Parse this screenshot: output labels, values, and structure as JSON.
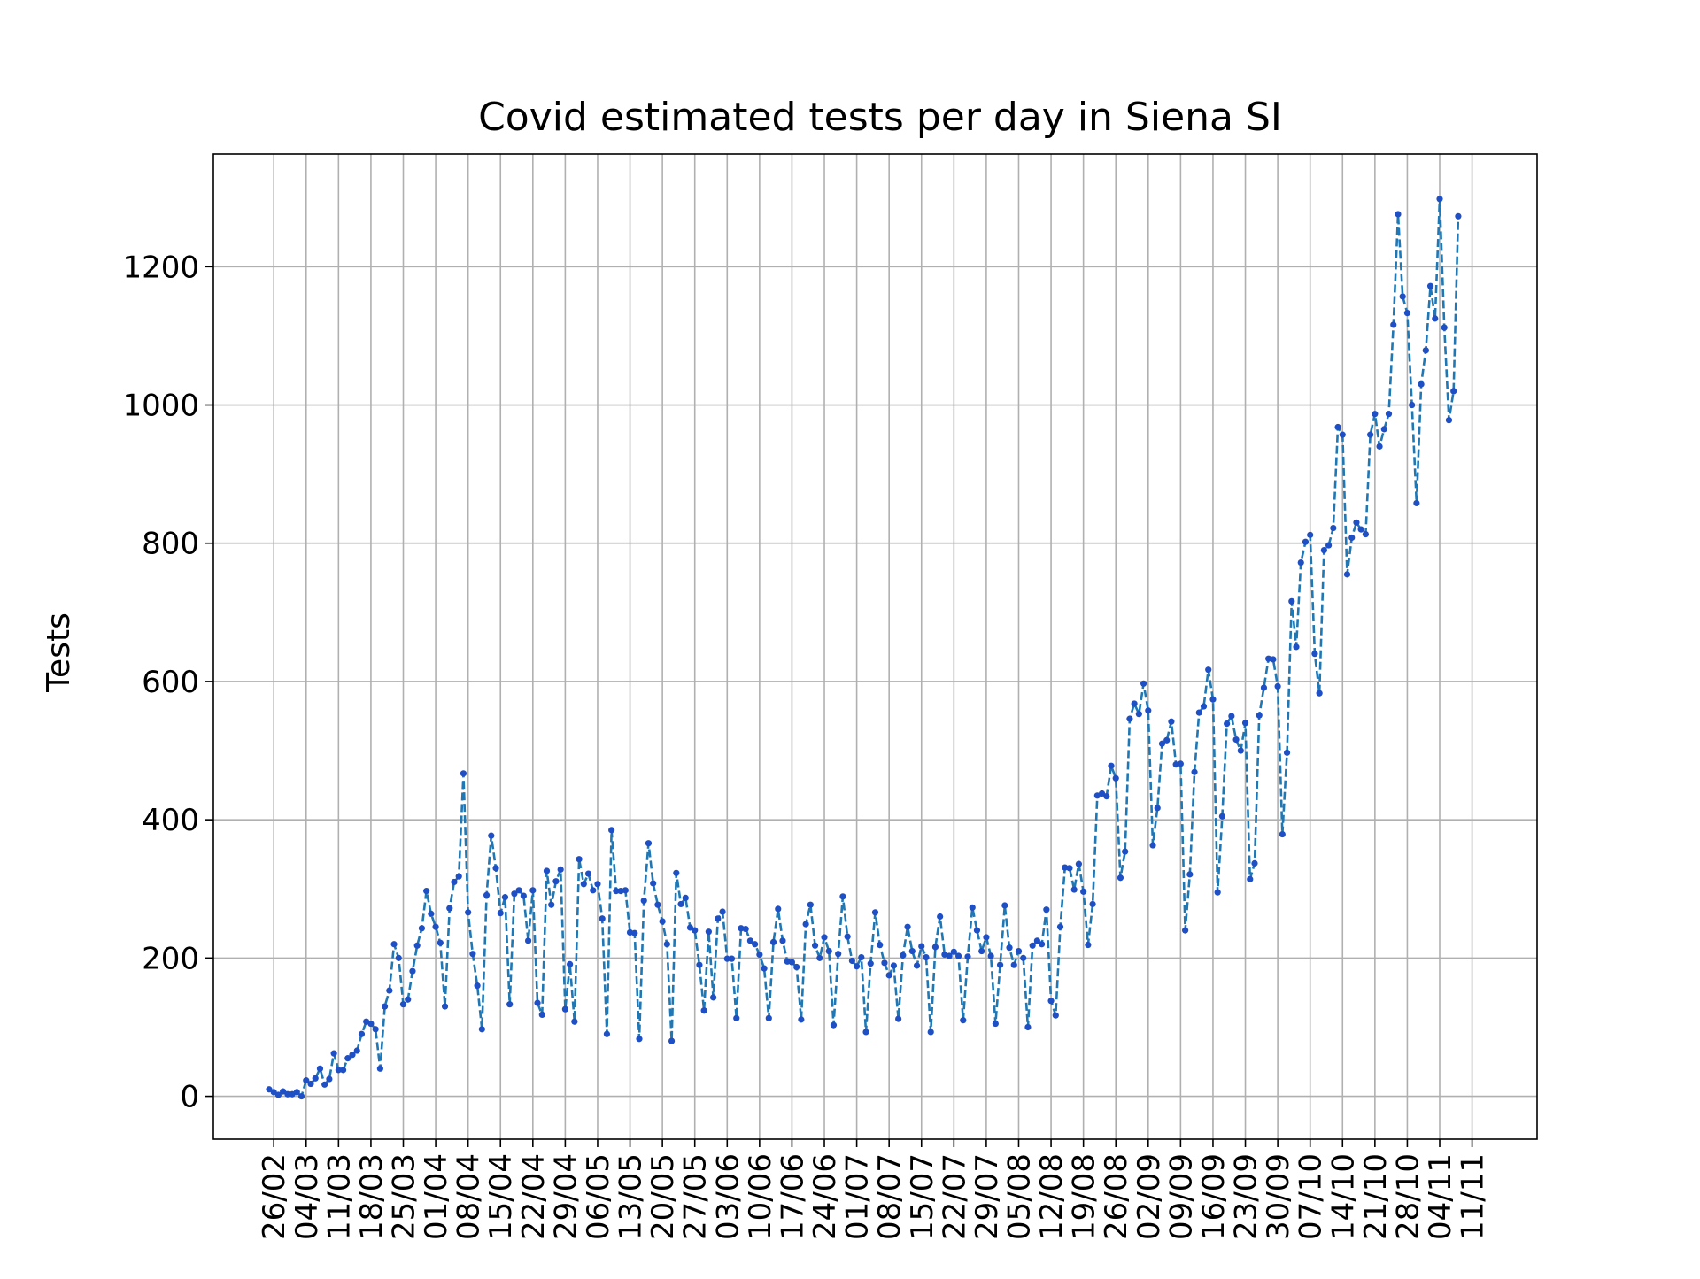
{
  "chart_data": {
    "type": "line",
    "title": "Covid estimated tests per day in Siena SI",
    "xlabel": "",
    "ylabel": "Tests",
    "grid": true,
    "ylim": [
      -62,
      1363
    ],
    "y_ticks": [
      0,
      200,
      400,
      600,
      800,
      1000,
      1200
    ],
    "x_tick_labels": [
      "26/02",
      "04/03",
      "11/03",
      "18/03",
      "25/03",
      "01/04",
      "08/04",
      "15/04",
      "22/04",
      "29/04",
      "06/05",
      "13/05",
      "20/05",
      "27/05",
      "03/06",
      "10/06",
      "17/06",
      "24/06",
      "01/07",
      "08/07",
      "15/07",
      "22/07",
      "29/07",
      "05/08",
      "12/08",
      "19/08",
      "26/08",
      "02/09",
      "09/09",
      "16/09",
      "23/09",
      "30/09",
      "07/10",
      "14/10",
      "21/10",
      "28/10",
      "04/11",
      "11/11"
    ],
    "x_tick_day_index": [
      0,
      7,
      14,
      21,
      28,
      35,
      42,
      49,
      56,
      63,
      70,
      77,
      84,
      91,
      98,
      105,
      112,
      119,
      126,
      133,
      140,
      147,
      154,
      161,
      168,
      175,
      182,
      189,
      196,
      203,
      210,
      217,
      224,
      231,
      238,
      245,
      252,
      259
    ],
    "series": [
      {
        "name": "",
        "style": "dashed line with dot markers",
        "start_day_index": -1,
        "values": [
          10,
          6,
          2,
          7,
          3,
          3,
          6,
          0,
          23,
          18,
          26,
          40,
          17,
          25,
          62,
          38,
          38,
          55,
          60,
          66,
          90,
          108,
          105,
          97,
          40,
          130,
          153,
          220,
          200,
          133,
          140,
          181,
          218,
          243,
          297,
          264,
          245,
          222,
          130,
          272,
          310,
          318,
          467,
          266,
          206,
          160,
          97,
          291,
          377,
          330,
          265,
          288,
          133,
          293,
          298,
          290,
          225,
          298,
          135,
          118,
          326,
          277,
          311,
          328,
          126,
          191,
          108,
          343,
          307,
          322,
          298,
          307,
          257,
          90,
          385,
          297,
          297,
          298,
          237,
          236,
          83,
          283,
          366,
          308,
          277,
          253,
          220,
          80,
          323,
          278,
          287,
          244,
          240,
          190,
          124,
          238,
          143,
          257,
          267,
          199,
          199,
          113,
          243,
          242,
          225,
          220,
          205,
          185,
          113,
          223,
          271,
          225,
          195,
          194,
          187,
          111,
          249,
          277,
          218,
          200,
          230,
          210,
          103,
          206,
          289,
          231,
          196,
          188,
          201,
          93,
          192,
          266,
          219,
          193,
          175,
          189,
          112,
          204,
          245,
          210,
          189,
          217,
          201,
          93,
          216,
          260,
          205,
          203,
          209,
          203,
          110,
          202,
          273,
          240,
          210,
          230,
          203,
          105,
          190,
          276,
          215,
          190,
          210,
          200,
          100,
          218,
          225,
          220,
          270,
          138,
          117,
          245,
          331,
          330,
          299,
          336,
          296,
          219,
          278,
          435,
          438,
          434,
          478,
          460,
          316,
          354,
          546,
          568,
          553,
          597,
          558,
          363,
          417,
          510,
          515,
          542,
          480,
          481,
          240,
          321,
          469,
          555,
          564,
          617,
          574,
          295,
          405,
          539,
          550,
          516,
          500,
          540,
          314,
          337,
          551,
          591,
          633,
          632,
          593,
          379,
          497,
          716,
          650,
          772,
          802,
          812,
          640,
          583,
          790,
          797,
          822,
          968,
          957,
          755,
          808,
          830,
          820,
          813,
          957,
          987,
          940,
          965,
          987,
          1116,
          1276,
          1157,
          1133,
          1000,
          858,
          1030,
          1079,
          1172,
          1125,
          1298,
          1112,
          978,
          1020,
          1273
        ]
      }
    ],
    "colors": {
      "line": "#1f77b4",
      "marker": "#1f4fc4",
      "grid": "#b0b0b0",
      "axes": "#000000",
      "background": "#ffffff"
    }
  }
}
